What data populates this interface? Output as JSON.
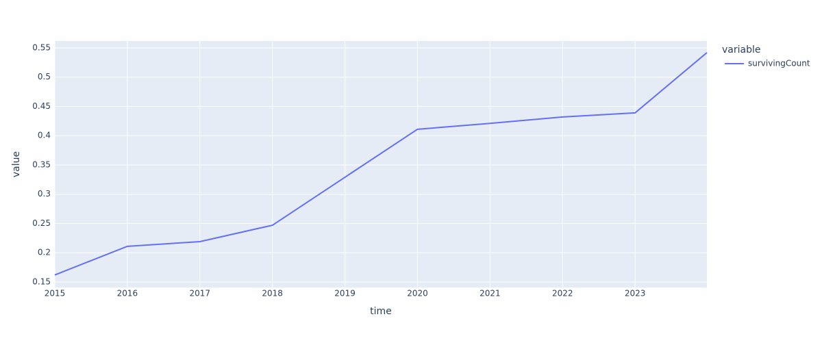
{
  "chart_data": {
    "type": "line",
    "x_label": "time",
    "y_label": "value",
    "legend_title": "variable",
    "x": [
      2015,
      2016,
      2017,
      2018,
      2019,
      2020,
      2021,
      2022,
      2023,
      2023.99
    ],
    "series": [
      {
        "name": "survivingCount",
        "color": "#636efa",
        "values": [
          0.162,
          0.211,
          0.219,
          0.247,
          0.329,
          0.411,
          0.421,
          0.432,
          0.439,
          0.542
        ]
      }
    ],
    "xlim": [
      2015,
      2023.99
    ],
    "xticks": [
      2015,
      2016,
      2017,
      2018,
      2019,
      2020,
      2021,
      2022,
      2023
    ],
    "ylim": [
      0.1406,
      0.5617
    ],
    "yticks": [
      0.15,
      0.2,
      0.25,
      0.3,
      0.35,
      0.4,
      0.45,
      0.5,
      0.55
    ],
    "grid": true,
    "legend": "right"
  }
}
